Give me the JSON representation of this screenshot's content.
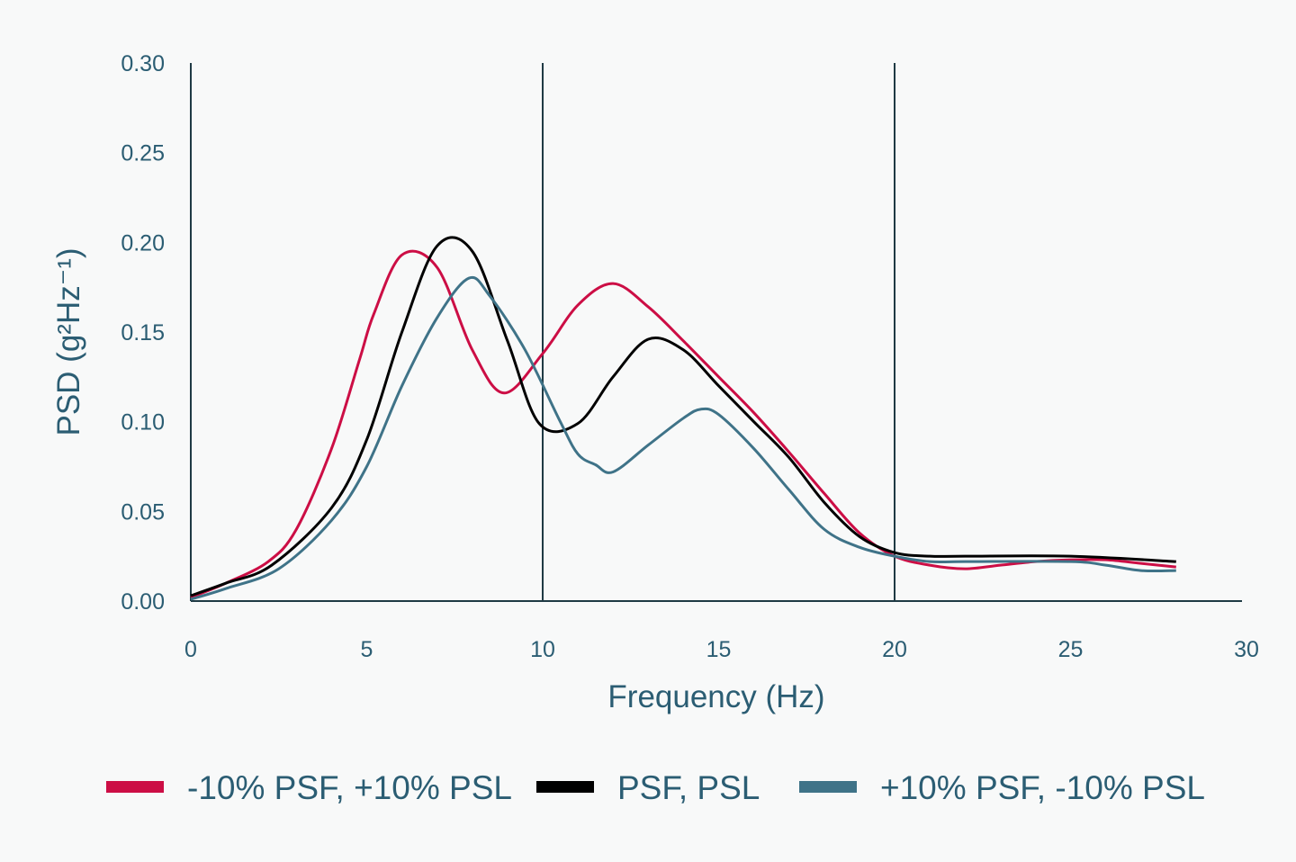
{
  "chart_data": {
    "type": "line",
    "title": "",
    "xlabel": "Frequency (Hz)",
    "ylabel": "PSD (g²Hz⁻¹)",
    "xlim": [
      0,
      30
    ],
    "ylim": [
      0,
      0.3
    ],
    "xticks": [
      "0",
      "5",
      "10",
      "15",
      "20",
      "25",
      "30"
    ],
    "yticks": [
      "0.00",
      "0.05",
      "0.10",
      "0.15",
      "0.20",
      "0.25",
      "0.30"
    ],
    "vertical_gridlines_at": [
      10,
      20
    ],
    "legend_position": "bottom",
    "colors": {
      "background": "#f8f9f9",
      "text": "#2b5d73",
      "axis": "#1f3a44"
    },
    "series": [
      {
        "name": "-10% PSF, +10% PSL",
        "color": "#cc0e45",
        "x": [
          0,
          1,
          2.2,
          3,
          4,
          4.8,
          5.2,
          6,
          7,
          8,
          8.9,
          10,
          11,
          12,
          13,
          14,
          15,
          16,
          17,
          18,
          19,
          20,
          21,
          22,
          23,
          24,
          25,
          26,
          27,
          28
        ],
        "y": [
          0.002,
          0.01,
          0.022,
          0.04,
          0.085,
          0.135,
          0.16,
          0.193,
          0.186,
          0.14,
          0.116,
          0.138,
          0.165,
          0.177,
          0.164,
          0.145,
          0.125,
          0.105,
          0.083,
          0.06,
          0.038,
          0.025,
          0.02,
          0.018,
          0.02,
          0.022,
          0.023,
          0.023,
          0.021,
          0.019
        ]
      },
      {
        "name": "PSF, PSL",
        "color": "#000000",
        "x": [
          0,
          1,
          2.3,
          4,
          5,
          6,
          7,
          8,
          9,
          9.9,
          11,
          12,
          13,
          14,
          15,
          16,
          17,
          18,
          19,
          20,
          21,
          22,
          25,
          28
        ],
        "y": [
          0.003,
          0.01,
          0.02,
          0.052,
          0.09,
          0.15,
          0.198,
          0.195,
          0.145,
          0.099,
          0.099,
          0.125,
          0.146,
          0.14,
          0.12,
          0.1,
          0.08,
          0.055,
          0.036,
          0.027,
          0.025,
          0.025,
          0.025,
          0.022
        ]
      },
      {
        "name": "+10% PSF, -10% PSL",
        "color": "#3f7388",
        "x": [
          0,
          1,
          2.5,
          4,
          5,
          6,
          7,
          7.9,
          8.5,
          9.5,
          10.5,
          11,
          11.5,
          12,
          13,
          14,
          14.5,
          15,
          16,
          17,
          18,
          19,
          20,
          21,
          22,
          25,
          26,
          27,
          28
        ],
        "y": [
          0.001,
          0.007,
          0.018,
          0.045,
          0.075,
          0.12,
          0.158,
          0.18,
          0.17,
          0.14,
          0.1,
          0.082,
          0.076,
          0.072,
          0.087,
          0.102,
          0.107,
          0.104,
          0.085,
          0.062,
          0.04,
          0.03,
          0.025,
          0.022,
          0.022,
          0.022,
          0.02,
          0.017,
          0.017
        ]
      }
    ]
  }
}
